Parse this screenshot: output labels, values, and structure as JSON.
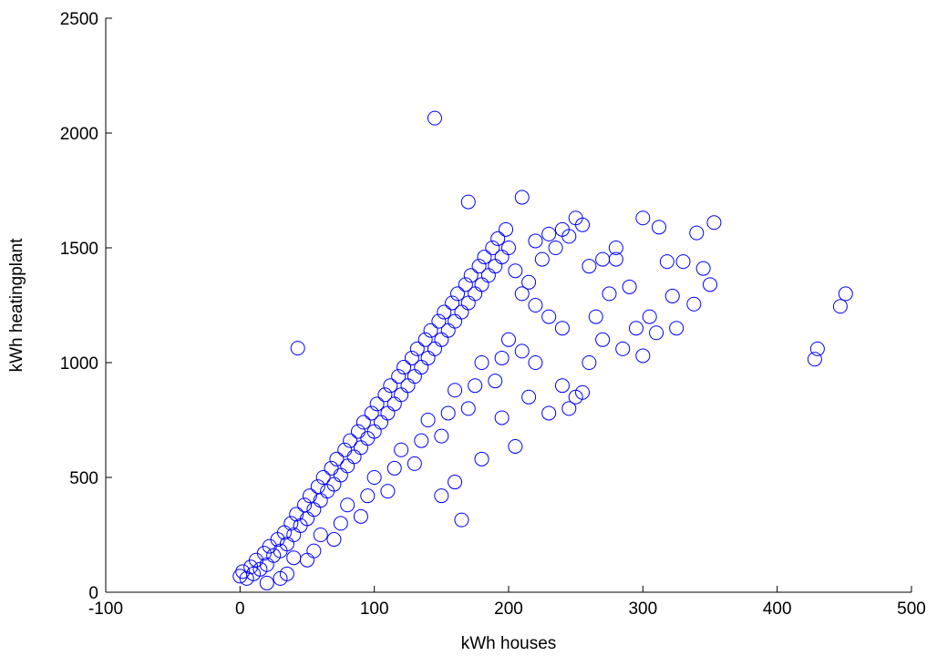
{
  "chart_data": {
    "type": "scatter",
    "title": "",
    "xlabel": "kWh houses",
    "ylabel": "kWh heatingplant",
    "xlim": [
      -100,
      500
    ],
    "ylim": [
      0,
      2500
    ],
    "xticks": [
      -100,
      0,
      100,
      200,
      300,
      400,
      500
    ],
    "yticks": [
      0,
      500,
      1000,
      1500,
      2000,
      2500
    ],
    "grid": false,
    "marker": "open-circle",
    "marker_color": "#0000ff",
    "series": [
      {
        "points": [
          [
            0,
            70
          ],
          [
            2,
            90
          ],
          [
            5,
            60
          ],
          [
            8,
            110
          ],
          [
            10,
            80
          ],
          [
            12,
            140
          ],
          [
            15,
            100
          ],
          [
            18,
            170
          ],
          [
            20,
            120
          ],
          [
            22,
            200
          ],
          [
            25,
            160
          ],
          [
            28,
            230
          ],
          [
            30,
            180
          ],
          [
            33,
            260
          ],
          [
            35,
            210
          ],
          [
            38,
            300
          ],
          [
            40,
            250
          ],
          [
            42,
            340
          ],
          [
            45,
            290
          ],
          [
            48,
            380
          ],
          [
            50,
            320
          ],
          [
            52,
            420
          ],
          [
            55,
            360
          ],
          [
            58,
            460
          ],
          [
            60,
            400
          ],
          [
            62,
            500
          ],
          [
            65,
            440
          ],
          [
            68,
            540
          ],
          [
            70,
            470
          ],
          [
            72,
            580
          ],
          [
            75,
            510
          ],
          [
            78,
            620
          ],
          [
            80,
            550
          ],
          [
            82,
            660
          ],
          [
            85,
            590
          ],
          [
            88,
            700
          ],
          [
            90,
            630
          ],
          [
            92,
            740
          ],
          [
            95,
            670
          ],
          [
            98,
            780
          ],
          [
            100,
            700
          ],
          [
            102,
            820
          ],
          [
            105,
            740
          ],
          [
            108,
            860
          ],
          [
            110,
            780
          ],
          [
            112,
            900
          ],
          [
            115,
            820
          ],
          [
            118,
            940
          ],
          [
            120,
            860
          ],
          [
            122,
            980
          ],
          [
            125,
            900
          ],
          [
            128,
            1020
          ],
          [
            130,
            940
          ],
          [
            132,
            1060
          ],
          [
            135,
            980
          ],
          [
            138,
            1100
          ],
          [
            140,
            1020
          ],
          [
            142,
            1140
          ],
          [
            145,
            1060
          ],
          [
            148,
            1180
          ],
          [
            150,
            1100
          ],
          [
            152,
            1220
          ],
          [
            155,
            1140
          ],
          [
            158,
            1260
          ],
          [
            160,
            1180
          ],
          [
            162,
            1300
          ],
          [
            165,
            1220
          ],
          [
            168,
            1340
          ],
          [
            170,
            1260
          ],
          [
            172,
            1380
          ],
          [
            175,
            1300
          ],
          [
            178,
            1420
          ],
          [
            180,
            1340
          ],
          [
            182,
            1460
          ],
          [
            185,
            1380
          ],
          [
            188,
            1500
          ],
          [
            190,
            1420
          ],
          [
            192,
            1540
          ],
          [
            195,
            1460
          ],
          [
            198,
            1580
          ],
          [
            200,
            1500
          ],
          [
            205,
            1400
          ],
          [
            210,
            1300
          ],
          [
            215,
            1350
          ],
          [
            220,
            1250
          ],
          [
            225,
            1450
          ],
          [
            230,
            1200
          ],
          [
            235,
            1500
          ],
          [
            240,
            1150
          ],
          [
            245,
            1550
          ],
          [
            40,
            150
          ],
          [
            60,
            250
          ],
          [
            80,
            380
          ],
          [
            100,
            500
          ],
          [
            120,
            620
          ],
          [
            140,
            750
          ],
          [
            160,
            880
          ],
          [
            180,
            1000
          ],
          [
            200,
            1100
          ],
          [
            220,
            1000
          ],
          [
            240,
            900
          ],
          [
            250,
            850
          ],
          [
            260,
            1000
          ],
          [
            270,
            1100
          ],
          [
            275,
            1300
          ],
          [
            280,
            1450
          ],
          [
            230,
            780
          ],
          [
            245,
            800
          ],
          [
            255,
            870
          ],
          [
            265,
            1200
          ],
          [
            30,
            60
          ],
          [
            50,
            140
          ],
          [
            70,
            230
          ],
          [
            90,
            330
          ],
          [
            110,
            440
          ],
          [
            130,
            560
          ],
          [
            150,
            680
          ],
          [
            170,
            800
          ],
          [
            190,
            920
          ],
          [
            210,
            1050
          ],
          [
            20,
            40
          ],
          [
            35,
            80
          ],
          [
            55,
            180
          ],
          [
            75,
            300
          ],
          [
            95,
            420
          ],
          [
            115,
            540
          ],
          [
            135,
            660
          ],
          [
            155,
            780
          ],
          [
            175,
            900
          ],
          [
            195,
            1020
          ],
          [
            150,
            420
          ],
          [
            160,
            480
          ],
          [
            180,
            580
          ],
          [
            165,
            315
          ],
          [
            205,
            635
          ],
          [
            195,
            760
          ],
          [
            215,
            850
          ],
          [
            170,
            1700
          ],
          [
            210,
            1720
          ],
          [
            145,
            2065
          ],
          [
            43,
            1063
          ],
          [
            300,
            1630
          ],
          [
            312,
            1590
          ],
          [
            353,
            1610
          ],
          [
            340,
            1565
          ],
          [
            290,
            1330
          ],
          [
            305,
            1200
          ],
          [
            318,
            1440
          ],
          [
            322,
            1290
          ],
          [
            325,
            1150
          ],
          [
            330,
            1440
          ],
          [
            338,
            1255
          ],
          [
            345,
            1410
          ],
          [
            350,
            1340
          ],
          [
            300,
            1030
          ],
          [
            285,
            1060
          ],
          [
            295,
            1150
          ],
          [
            310,
            1130
          ],
          [
            428,
            1015
          ],
          [
            430,
            1060
          ],
          [
            447,
            1245
          ],
          [
            451,
            1300
          ],
          [
            270,
            1450
          ],
          [
            280,
            1500
          ],
          [
            250,
            1630
          ],
          [
            255,
            1600
          ],
          [
            240,
            1580
          ],
          [
            230,
            1560
          ],
          [
            220,
            1530
          ],
          [
            260,
            1420
          ]
        ]
      }
    ]
  }
}
